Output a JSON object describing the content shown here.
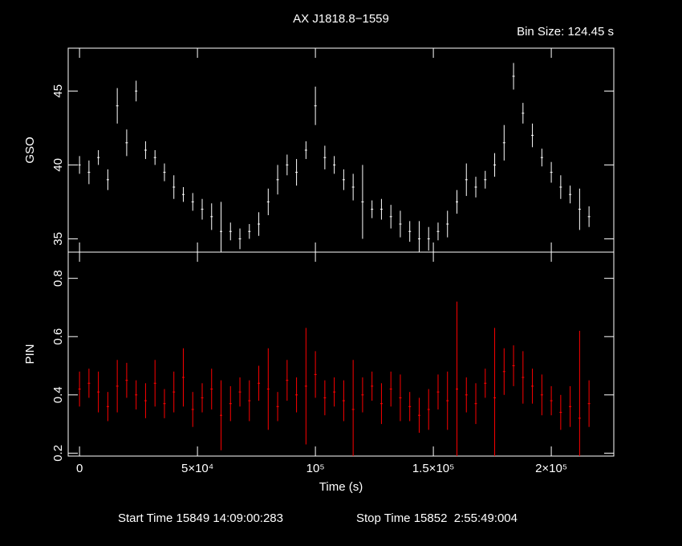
{
  "chart_data": {
    "type": "errorbar",
    "title": "AX J1818.8−1559",
    "bin_size": "Bin Size: 124.45 s",
    "xlabel": "Time (s)",
    "start_time": "Start Time 15849 14:09:00:283",
    "stop_time": "Stop Time 15852  2:55:49:004",
    "xlim": [
      -4800,
      226500
    ],
    "xticks": [
      0,
      {
        "value": 50000,
        "label": "5×10⁴"
      },
      {
        "value": 100000,
        "label": "10⁵"
      },
      {
        "value": 150000,
        "label": "1.5×10⁵"
      },
      {
        "value": 200000,
        "label": "2×10⁵"
      }
    ],
    "x": [
      0,
      4000,
      8000,
      12000,
      16000,
      20000,
      24000,
      28000,
      32000,
      36000,
      40000,
      44000,
      48000,
      52000,
      56000,
      60000,
      64000,
      68000,
      72000,
      76000,
      80000,
      84000,
      88000,
      92000,
      96000,
      100000,
      104000,
      108000,
      112000,
      116000,
      120000,
      124000,
      128000,
      132000,
      136000,
      140000,
      144000,
      148000,
      152000,
      156000,
      160000,
      164000,
      168000,
      172000,
      176000,
      180000,
      184000,
      188000,
      192000,
      196000,
      200000,
      204000,
      208000,
      212000,
      216000
    ],
    "panels": [
      {
        "ylabel": "GSO",
        "color": "#ffffff",
        "ylim": [
          34.1,
          47.9
        ],
        "yticks": [
          35,
          40,
          45
        ],
        "values": [
          40,
          39.5,
          40.5,
          39,
          44,
          41.5,
          45,
          41,
          40.5,
          39.5,
          38.5,
          38,
          37.5,
          37,
          36.5,
          35.5,
          35.5,
          35,
          35.5,
          36,
          37.5,
          39,
          40,
          39.5,
          41,
          44,
          40.5,
          40,
          39,
          38.5,
          37.5,
          37,
          37,
          36.5,
          36,
          35.5,
          35,
          35,
          35.5,
          36,
          37.5,
          39,
          38.5,
          39,
          40,
          41.5,
          46,
          43.5,
          42,
          40.5,
          39.5,
          38.5,
          38,
          37,
          36.5
        ],
        "errors": [
          0.6,
          0.8,
          0.5,
          0.7,
          1.2,
          0.9,
          0.7,
          0.6,
          0.5,
          0.6,
          0.8,
          0.5,
          0.6,
          0.7,
          0.9,
          2,
          0.6,
          0.7,
          0.5,
          0.8,
          0.9,
          1,
          0.7,
          0.9,
          0.6,
          1.3,
          0.8,
          0.6,
          0.7,
          0.9,
          2.5,
          0.6,
          0.7,
          0.8,
          0.9,
          0.7,
          1.2,
          0.8,
          0.6,
          0.9,
          0.8,
          1.1,
          0.7,
          0.6,
          0.8,
          1.2,
          0.9,
          0.7,
          0.8,
          0.6,
          0.7,
          0.8,
          0.6,
          1.4,
          0.7
        ]
      },
      {
        "ylabel": "PIN",
        "color": "#ff0000",
        "ylim": [
          0.19,
          0.89
        ],
        "yticks": [
          0.2,
          0.4,
          0.6,
          0.8
        ],
        "values": [
          0.42,
          0.44,
          0.41,
          0.36,
          0.43,
          0.45,
          0.4,
          0.38,
          0.44,
          0.37,
          0.41,
          0.46,
          0.35,
          0.39,
          0.42,
          0.33,
          0.37,
          0.41,
          0.38,
          0.44,
          0.42,
          0.36,
          0.45,
          0.4,
          0.43,
          0.47,
          0.39,
          0.41,
          0.38,
          0.35,
          0.4,
          0.43,
          0.37,
          0.42,
          0.39,
          0.36,
          0.33,
          0.35,
          0.41,
          0.38,
          0.42,
          0.4,
          0.37,
          0.44,
          0.39,
          0.48,
          0.5,
          0.46,
          0.43,
          0.4,
          0.38,
          0.34,
          0.36,
          0.32,
          0.37
        ],
        "errors": [
          0.06,
          0.05,
          0.07,
          0.05,
          0.09,
          0.06,
          0.05,
          0.06,
          0.08,
          0.05,
          0.07,
          0.1,
          0.06,
          0.05,
          0.07,
          0.12,
          0.06,
          0.05,
          0.07,
          0.06,
          0.14,
          0.05,
          0.07,
          0.06,
          0.2,
          0.08,
          0.06,
          0.05,
          0.07,
          0.17,
          0.06,
          0.05,
          0.07,
          0.06,
          0.08,
          0.05,
          0.06,
          0.07,
          0.06,
          0.1,
          0.3,
          0.06,
          0.07,
          0.05,
          0.24,
          0.08,
          0.07,
          0.09,
          0.06,
          0.07,
          0.05,
          0.06,
          0.07,
          0.3,
          0.08
        ]
      }
    ]
  }
}
